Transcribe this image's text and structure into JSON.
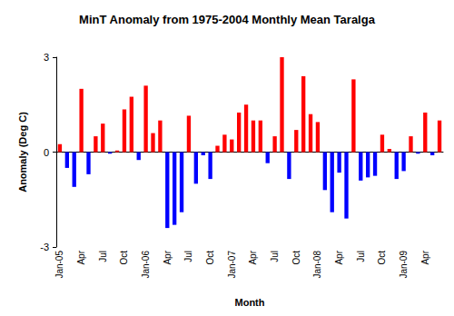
{
  "chart_data": {
    "type": "bar",
    "title": "MinT Anomaly from 1975-2004 Monthly Mean Taralga",
    "x_label": "Month",
    "y_label": "Anomaly (Deg C)",
    "categories": [
      "Jan-05",
      null,
      null,
      "Apr",
      null,
      null,
      "Jul",
      null,
      null,
      "Oct",
      null,
      null,
      "Jan-06",
      null,
      null,
      "Apr",
      null,
      null,
      "Jul",
      null,
      null,
      "Oct",
      null,
      null,
      "Jan-07",
      null,
      null,
      "Apr",
      null,
      null,
      "Jul",
      null,
      null,
      "Oct",
      null,
      null,
      "Jan-08",
      null,
      null,
      "Apr",
      null,
      null,
      "Jul",
      null,
      null,
      "Oct",
      null,
      null,
      "Jan-09",
      null,
      null,
      "Apr",
      null,
      null
    ],
    "values": [
      0.25,
      -0.5,
      -1.1,
      2.0,
      -0.7,
      0.5,
      0.9,
      -0.05,
      0.05,
      1.35,
      1.75,
      -0.25,
      2.1,
      0.6,
      1.0,
      -2.4,
      -2.3,
      -1.9,
      1.15,
      -1.0,
      -0.1,
      -0.85,
      0.2,
      0.55,
      0.4,
      1.25,
      1.5,
      1.0,
      1.0,
      -0.35,
      0.5,
      3.0,
      -0.85,
      0.7,
      2.4,
      1.2,
      0.95,
      -1.2,
      -1.9,
      -0.65,
      -2.1,
      2.3,
      -0.9,
      -0.8,
      -0.75,
      0.55,
      0.1,
      -0.85,
      -0.6,
      0.5,
      -0.05,
      1.25,
      -0.1,
      1.0
    ],
    "colors": [
      "#ff0000",
      "#0000ff",
      "#0000ff",
      "#ff0000",
      "#0000ff",
      "#ff0000",
      "#ff0000",
      "#0000ff",
      "#ff0000",
      "#ff0000",
      "#ff0000",
      "#0000ff",
      "#ff0000",
      "#ff0000",
      "#ff0000",
      "#0000ff",
      "#0000ff",
      "#0000ff",
      "#ff0000",
      "#0000ff",
      "#0000ff",
      "#0000ff",
      "#ff0000",
      "#ff0000",
      "#ff0000",
      "#ff0000",
      "#ff0000",
      "#ff0000",
      "#ff0000",
      "#0000ff",
      "#ff0000",
      "#ff0000",
      "#0000ff",
      "#ff0000",
      "#ff0000",
      "#ff0000",
      "#ff0000",
      "#0000ff",
      "#0000ff",
      "#0000ff",
      "#0000ff",
      "#ff0000",
      "#0000ff",
      "#0000ff",
      "#0000ff",
      "#ff0000",
      "#ff0000",
      "#0000ff",
      "#0000ff",
      "#ff0000",
      "#0000ff",
      "#ff0000",
      "#0000ff",
      "#ff0000"
    ],
    "ylim": [
      -3,
      3
    ],
    "yticks": [
      -3,
      0,
      3
    ],
    "grid": false
  }
}
